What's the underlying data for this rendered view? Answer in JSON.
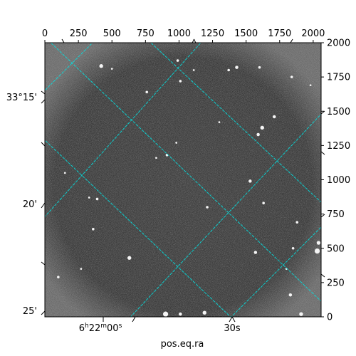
{
  "chart_data": {
    "type": "image",
    "xlabel": "pos.eq.ra",
    "pixel_axes": {
      "x_ticks": [
        0,
        250,
        500,
        750,
        1000,
        1250,
        1500,
        1750,
        2000
      ],
      "y_ticks": [
        0,
        250,
        500,
        750,
        1000,
        1250,
        1500,
        1750,
        2000
      ],
      "xlim": [
        0,
        2059
      ],
      "ylim": [
        0,
        2000
      ]
    },
    "world_axes": {
      "ra_tick_labels": [
        {
          "value_seconds": 0,
          "label_html": "6<tspan baseline-shift='super' font-size='9'>h</tspan>22<tspan baseline-shift='super' font-size='9'>m</tspan>00<tspan baseline-shift='super' font-size='9'>s</tspan>",
          "label": "6h22m00s"
        },
        {
          "value_seconds": 30,
          "label": "30s"
        }
      ],
      "dec_tick_labels": [
        {
          "value_arcmin": 15,
          "label": "33°15'"
        },
        {
          "value_arcmin": 20,
          "label": "20'"
        },
        {
          "value_arcmin": 25,
          "label": "25'"
        }
      ]
    },
    "grid": true,
    "grid_color": "#00e5e5",
    "background_color": "#3a3a3a",
    "colormap": "gray",
    "stars": [
      {
        "x": 420,
        "y": 1830,
        "r": 3
      },
      {
        "x": 990,
        "y": 1870,
        "r": 2
      },
      {
        "x": 1010,
        "y": 1720,
        "r": 2
      },
      {
        "x": 1430,
        "y": 1820,
        "r": 2.5
      },
      {
        "x": 1370,
        "y": 1800,
        "r": 2
      },
      {
        "x": 1600,
        "y": 1820,
        "r": 2
      },
      {
        "x": 1840,
        "y": 1750,
        "r": 2
      },
      {
        "x": 1980,
        "y": 1690,
        "r": 1.5
      },
      {
        "x": 1620,
        "y": 1380,
        "r": 3
      },
      {
        "x": 1590,
        "y": 1330,
        "r": 2.5
      },
      {
        "x": 1710,
        "y": 1460,
        "r": 2.5
      },
      {
        "x": 1530,
        "y": 990,
        "r": 2.5
      },
      {
        "x": 910,
        "y": 1180,
        "r": 2
      },
      {
        "x": 830,
        "y": 1160,
        "r": 1.5
      },
      {
        "x": 390,
        "y": 860,
        "r": 2
      },
      {
        "x": 330,
        "y": 870,
        "r": 1.5
      },
      {
        "x": 1210,
        "y": 800,
        "r": 2
      },
      {
        "x": 1630,
        "y": 830,
        "r": 2
      },
      {
        "x": 1880,
        "y": 690,
        "r": 2
      },
      {
        "x": 360,
        "y": 640,
        "r": 2
      },
      {
        "x": 630,
        "y": 430,
        "r": 3
      },
      {
        "x": 1570,
        "y": 470,
        "r": 2.5
      },
      {
        "x": 1850,
        "y": 500,
        "r": 2
      },
      {
        "x": 1800,
        "y": 350,
        "r": 1.5
      },
      {
        "x": 1830,
        "y": 160,
        "r": 2.5
      },
      {
        "x": 900,
        "y": 20,
        "r": 4
      },
      {
        "x": 1190,
        "y": 30,
        "r": 3
      },
      {
        "x": 1010,
        "y": 20,
        "r": 2.5
      },
      {
        "x": 1910,
        "y": 20,
        "r": 3
      },
      {
        "x": 100,
        "y": 290,
        "r": 2
      },
      {
        "x": 270,
        "y": 350,
        "r": 1.5
      },
      {
        "x": 1110,
        "y": 1800,
        "r": 1.5
      },
      {
        "x": 500,
        "y": 1810,
        "r": 1.5
      },
      {
        "x": 2030,
        "y": 480,
        "r": 4
      },
      {
        "x": 2040,
        "y": 540,
        "r": 3
      },
      {
        "x": 150,
        "y": 1050,
        "r": 1.5
      },
      {
        "x": 1300,
        "y": 1420,
        "r": 1.5
      },
      {
        "x": 760,
        "y": 1640,
        "r": 2
      },
      {
        "x": 980,
        "y": 1270,
        "r": 1.5
      }
    ]
  }
}
